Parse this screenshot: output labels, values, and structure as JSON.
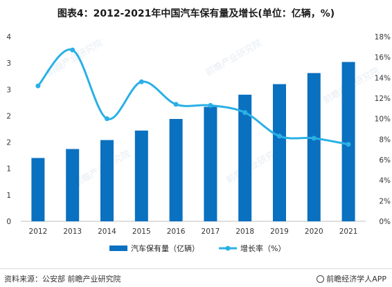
{
  "title": "图表4：2012-2021年中国汽车保有量及增长(单位：亿辆，%)",
  "footer": {
    "source": "资料来源：公安部 前瞻产业研究院",
    "brand": "前瞻经济学人APP"
  },
  "watermark": "前瞻产业研究院",
  "colors": {
    "bar": "#0a70c0",
    "line": "#2ab0e6"
  },
  "chart_data": {
    "type": "bar",
    "categories": [
      "2012",
      "2013",
      "2014",
      "2015",
      "2016",
      "2017",
      "2018",
      "2019",
      "2020",
      "2021"
    ],
    "series": [
      {
        "name": "汽车保有量（亿辆）",
        "type": "bar",
        "axis": "left",
        "values": [
          1.2,
          1.37,
          1.54,
          1.72,
          1.94,
          2.17,
          2.4,
          2.6,
          2.81,
          3.02
        ]
      },
      {
        "name": "增长率（%）",
        "type": "line",
        "axis": "right",
        "values": [
          13.2,
          16.7,
          10.0,
          13.6,
          11.4,
          11.3,
          10.6,
          8.3,
          8.1,
          7.5
        ]
      }
    ],
    "y_left": {
      "ylim": [
        0,
        3.5
      ],
      "tick_values": [
        0,
        0.5,
        1,
        1.5,
        2,
        2.5,
        3,
        3.5
      ],
      "tick_labels": [
        "0",
        "1",
        "1",
        "2",
        "2",
        "3",
        "3",
        "4"
      ]
    },
    "y_right": {
      "ylim": [
        0,
        18
      ],
      "tick_values": [
        0,
        2,
        4,
        6,
        8,
        10,
        12,
        14,
        16,
        18
      ],
      "tick_labels": [
        "0%",
        "2%",
        "4%",
        "6%",
        "8%",
        "10%",
        "12%",
        "14%",
        "16%",
        "18%"
      ]
    },
    "grid": false,
    "legend_position": "bottom"
  }
}
